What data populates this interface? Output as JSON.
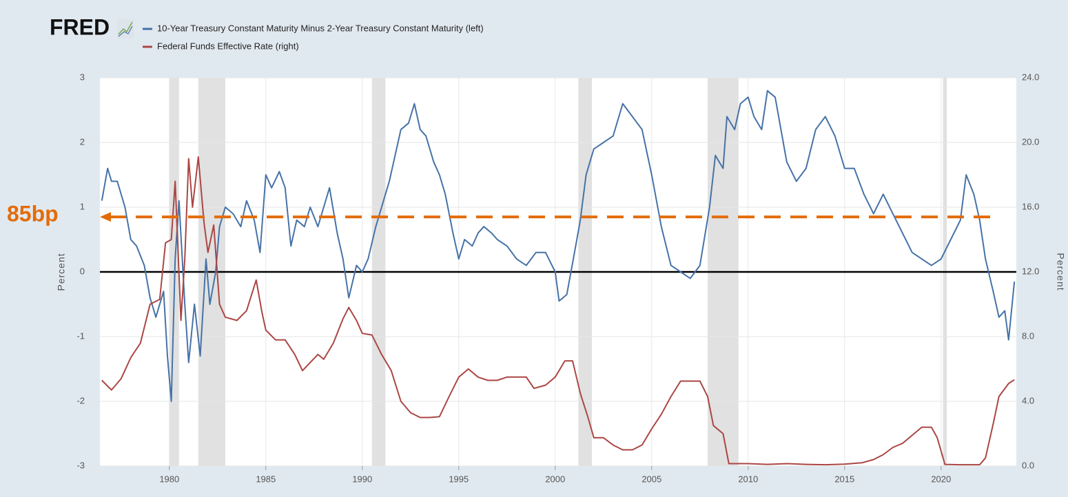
{
  "chart_data": {
    "type": "line",
    "logo": "FRED",
    "xlim": [
      1976.4,
      2023.9
    ],
    "xticks": [
      1980,
      1985,
      1990,
      1995,
      2000,
      2005,
      2010,
      2015,
      2020
    ],
    "ylim": [
      -3,
      3
    ],
    "yticks": [
      -3,
      -2,
      -1,
      0,
      1,
      2,
      3
    ],
    "y2lim": [
      0,
      24
    ],
    "y2ticks": [
      {
        "value": 0,
        "label": "0.0"
      },
      {
        "value": 4,
        "label": "4.0"
      },
      {
        "value": 8,
        "label": "8.0"
      },
      {
        "value": 12,
        "label": "12.0"
      },
      {
        "value": 16,
        "label": "16.0"
      },
      {
        "value": 20,
        "label": "20.0"
      },
      {
        "value": 24,
        "label": "24.0"
      }
    ],
    "ylabel": "Percent",
    "y2label": "Percent",
    "grid": true,
    "recessions": [
      [
        1980.0,
        1980.5
      ],
      [
        1981.5,
        1982.9
      ],
      [
        1990.5,
        1991.2
      ],
      [
        2001.2,
        2001.9
      ],
      [
        2007.9,
        2009.5
      ],
      [
        2020.1,
        2020.3
      ]
    ],
    "hline": {
      "value": 0,
      "color": "#000000"
    },
    "annotation": {
      "text": "85bp",
      "value": 0.85,
      "color": "#e36c09"
    },
    "series": [
      {
        "name": "10-Year Treasury Constant Maturity Minus 2-Year Treasury Constant Maturity (left)",
        "color": "#4572a7",
        "axis": "y",
        "x": [
          1976.5,
          1976.8,
          1977.0,
          1977.3,
          1977.7,
          1978.0,
          1978.3,
          1978.7,
          1979.0,
          1979.3,
          1979.7,
          1979.9,
          1980.1,
          1980.3,
          1980.5,
          1980.8,
          1981.0,
          1981.3,
          1981.6,
          1981.9,
          1982.1,
          1982.4,
          1982.6,
          1982.9,
          1983.3,
          1983.7,
          1984.0,
          1984.4,
          1984.7,
          1985.0,
          1985.3,
          1985.7,
          1986.0,
          1986.3,
          1986.6,
          1987.0,
          1987.3,
          1987.7,
          1988.0,
          1988.3,
          1988.7,
          1989.0,
          1989.3,
          1989.7,
          1990.0,
          1990.3,
          1990.7,
          1991.0,
          1991.4,
          1991.7,
          1992.0,
          1992.4,
          1992.7,
          1993.0,
          1993.3,
          1993.7,
          1994.0,
          1994.3,
          1994.7,
          1995.0,
          1995.3,
          1995.7,
          1996.0,
          1996.3,
          1996.7,
          1997.0,
          1997.5,
          1998.0,
          1998.5,
          1999.0,
          1999.5,
          2000.0,
          2000.2,
          2000.6,
          2001.0,
          2001.3,
          2001.6,
          2002.0,
          2002.5,
          2003.0,
          2003.5,
          2004.0,
          2004.5,
          2005.0,
          2005.5,
          2006.0,
          2006.5,
          2007.0,
          2007.5,
          2008.0,
          2008.3,
          2008.7,
          2008.9,
          2009.3,
          2009.6,
          2010.0,
          2010.3,
          2010.7,
          2011.0,
          2011.4,
          2011.7,
          2012.0,
          2012.5,
          2013.0,
          2013.5,
          2014.0,
          2014.5,
          2015.0,
          2015.5,
          2016.0,
          2016.5,
          2017.0,
          2017.5,
          2018.0,
          2018.5,
          2019.0,
          2019.5,
          2020.0,
          2020.5,
          2021.0,
          2021.3,
          2021.7,
          2022.0,
          2022.3,
          2022.7,
          2023.0,
          2023.3,
          2023.5,
          2023.8
        ],
        "values": [
          1.1,
          1.6,
          1.4,
          1.4,
          1.0,
          0.5,
          0.4,
          0.1,
          -0.4,
          -0.7,
          -0.3,
          -1.3,
          -2.0,
          0.2,
          1.1,
          -0.5,
          -1.4,
          -0.5,
          -1.3,
          0.2,
          -0.5,
          0.0,
          0.7,
          1.0,
          0.9,
          0.7,
          1.1,
          0.8,
          0.3,
          1.5,
          1.3,
          1.55,
          1.3,
          0.4,
          0.8,
          0.7,
          1.0,
          0.7,
          1.0,
          1.3,
          0.6,
          0.2,
          -0.4,
          0.1,
          0.0,
          0.2,
          0.7,
          1.0,
          1.4,
          1.8,
          2.2,
          2.3,
          2.6,
          2.2,
          2.1,
          1.7,
          1.5,
          1.2,
          0.6,
          0.2,
          0.5,
          0.4,
          0.6,
          0.7,
          0.6,
          0.5,
          0.4,
          0.2,
          0.1,
          0.3,
          0.3,
          0.0,
          -0.45,
          -0.35,
          0.3,
          0.8,
          1.5,
          1.9,
          2.0,
          2.1,
          2.6,
          2.4,
          2.2,
          1.5,
          0.7,
          0.1,
          0.0,
          -0.1,
          0.1,
          1.0,
          1.8,
          1.6,
          2.4,
          2.2,
          2.6,
          2.7,
          2.4,
          2.2,
          2.8,
          2.7,
          2.2,
          1.7,
          1.4,
          1.6,
          2.2,
          2.4,
          2.1,
          1.6,
          1.6,
          1.2,
          0.9,
          1.2,
          0.9,
          0.6,
          0.3,
          0.2,
          0.1,
          0.2,
          0.5,
          0.8,
          1.5,
          1.2,
          0.8,
          0.2,
          -0.3,
          -0.7,
          -0.6,
          -1.05,
          -0.15
        ]
      },
      {
        "name": "Federal Funds Effective Rate (right)",
        "color": "#aa4643",
        "axis": "y2",
        "x": [
          1976.5,
          1977.0,
          1977.5,
          1978.0,
          1978.5,
          1979.0,
          1979.5,
          1979.8,
          1980.1,
          1980.3,
          1980.6,
          1980.8,
          1981.0,
          1981.2,
          1981.5,
          1981.8,
          1982.0,
          1982.3,
          1982.6,
          1982.9,
          1983.5,
          1984.0,
          1984.5,
          1984.8,
          1985.0,
          1985.5,
          1986.0,
          1986.5,
          1986.9,
          1987.3,
          1987.7,
          1988.0,
          1988.5,
          1989.0,
          1989.3,
          1989.7,
          1990.0,
          1990.5,
          1991.0,
          1991.5,
          1992.0,
          1992.5,
          1993.0,
          1993.5,
          1994.0,
          1994.5,
          1995.0,
          1995.5,
          1996.0,
          1996.5,
          1997.0,
          1997.5,
          1998.0,
          1998.5,
          1998.9,
          1999.5,
          2000.0,
          2000.5,
          2000.9,
          2001.3,
          2001.7,
          2002.0,
          2002.5,
          2003.0,
          2003.5,
          2004.0,
          2004.5,
          2005.0,
          2005.5,
          2006.0,
          2006.5,
          2007.0,
          2007.5,
          2007.9,
          2008.2,
          2008.7,
          2009.0,
          2010.0,
          2011.0,
          2012.0,
          2013.0,
          2014.0,
          2015.0,
          2015.9,
          2016.5,
          2017.0,
          2017.5,
          2018.0,
          2018.5,
          2019.0,
          2019.5,
          2019.8,
          2020.2,
          2021.0,
          2022.0,
          2022.3,
          2022.7,
          2023.0,
          2023.5,
          2023.8
        ],
        "values": [
          5.3,
          4.7,
          5.4,
          6.7,
          7.6,
          10.0,
          10.3,
          13.8,
          14.0,
          17.6,
          9.0,
          12.8,
          19.0,
          16.0,
          19.1,
          15.0,
          13.2,
          14.9,
          10.0,
          9.2,
          9.0,
          9.6,
          11.5,
          9.5,
          8.4,
          7.8,
          7.8,
          6.9,
          5.9,
          6.4,
          6.9,
          6.6,
          7.6,
          9.1,
          9.8,
          9.0,
          8.2,
          8.1,
          6.9,
          5.9,
          4.0,
          3.3,
          3.0,
          3.0,
          3.05,
          4.3,
          5.5,
          6.0,
          5.5,
          5.3,
          5.3,
          5.5,
          5.5,
          5.5,
          4.8,
          5.0,
          5.5,
          6.5,
          6.5,
          4.5,
          3.0,
          1.75,
          1.75,
          1.3,
          1.0,
          1.0,
          1.3,
          2.3,
          3.2,
          4.3,
          5.25,
          5.25,
          5.25,
          4.3,
          2.5,
          2.0,
          0.15,
          0.15,
          0.1,
          0.15,
          0.1,
          0.08,
          0.12,
          0.2,
          0.4,
          0.7,
          1.15,
          1.4,
          1.9,
          2.4,
          2.4,
          1.75,
          0.1,
          0.08,
          0.08,
          0.5,
          2.6,
          4.3,
          5.1,
          5.33
        ]
      }
    ]
  }
}
